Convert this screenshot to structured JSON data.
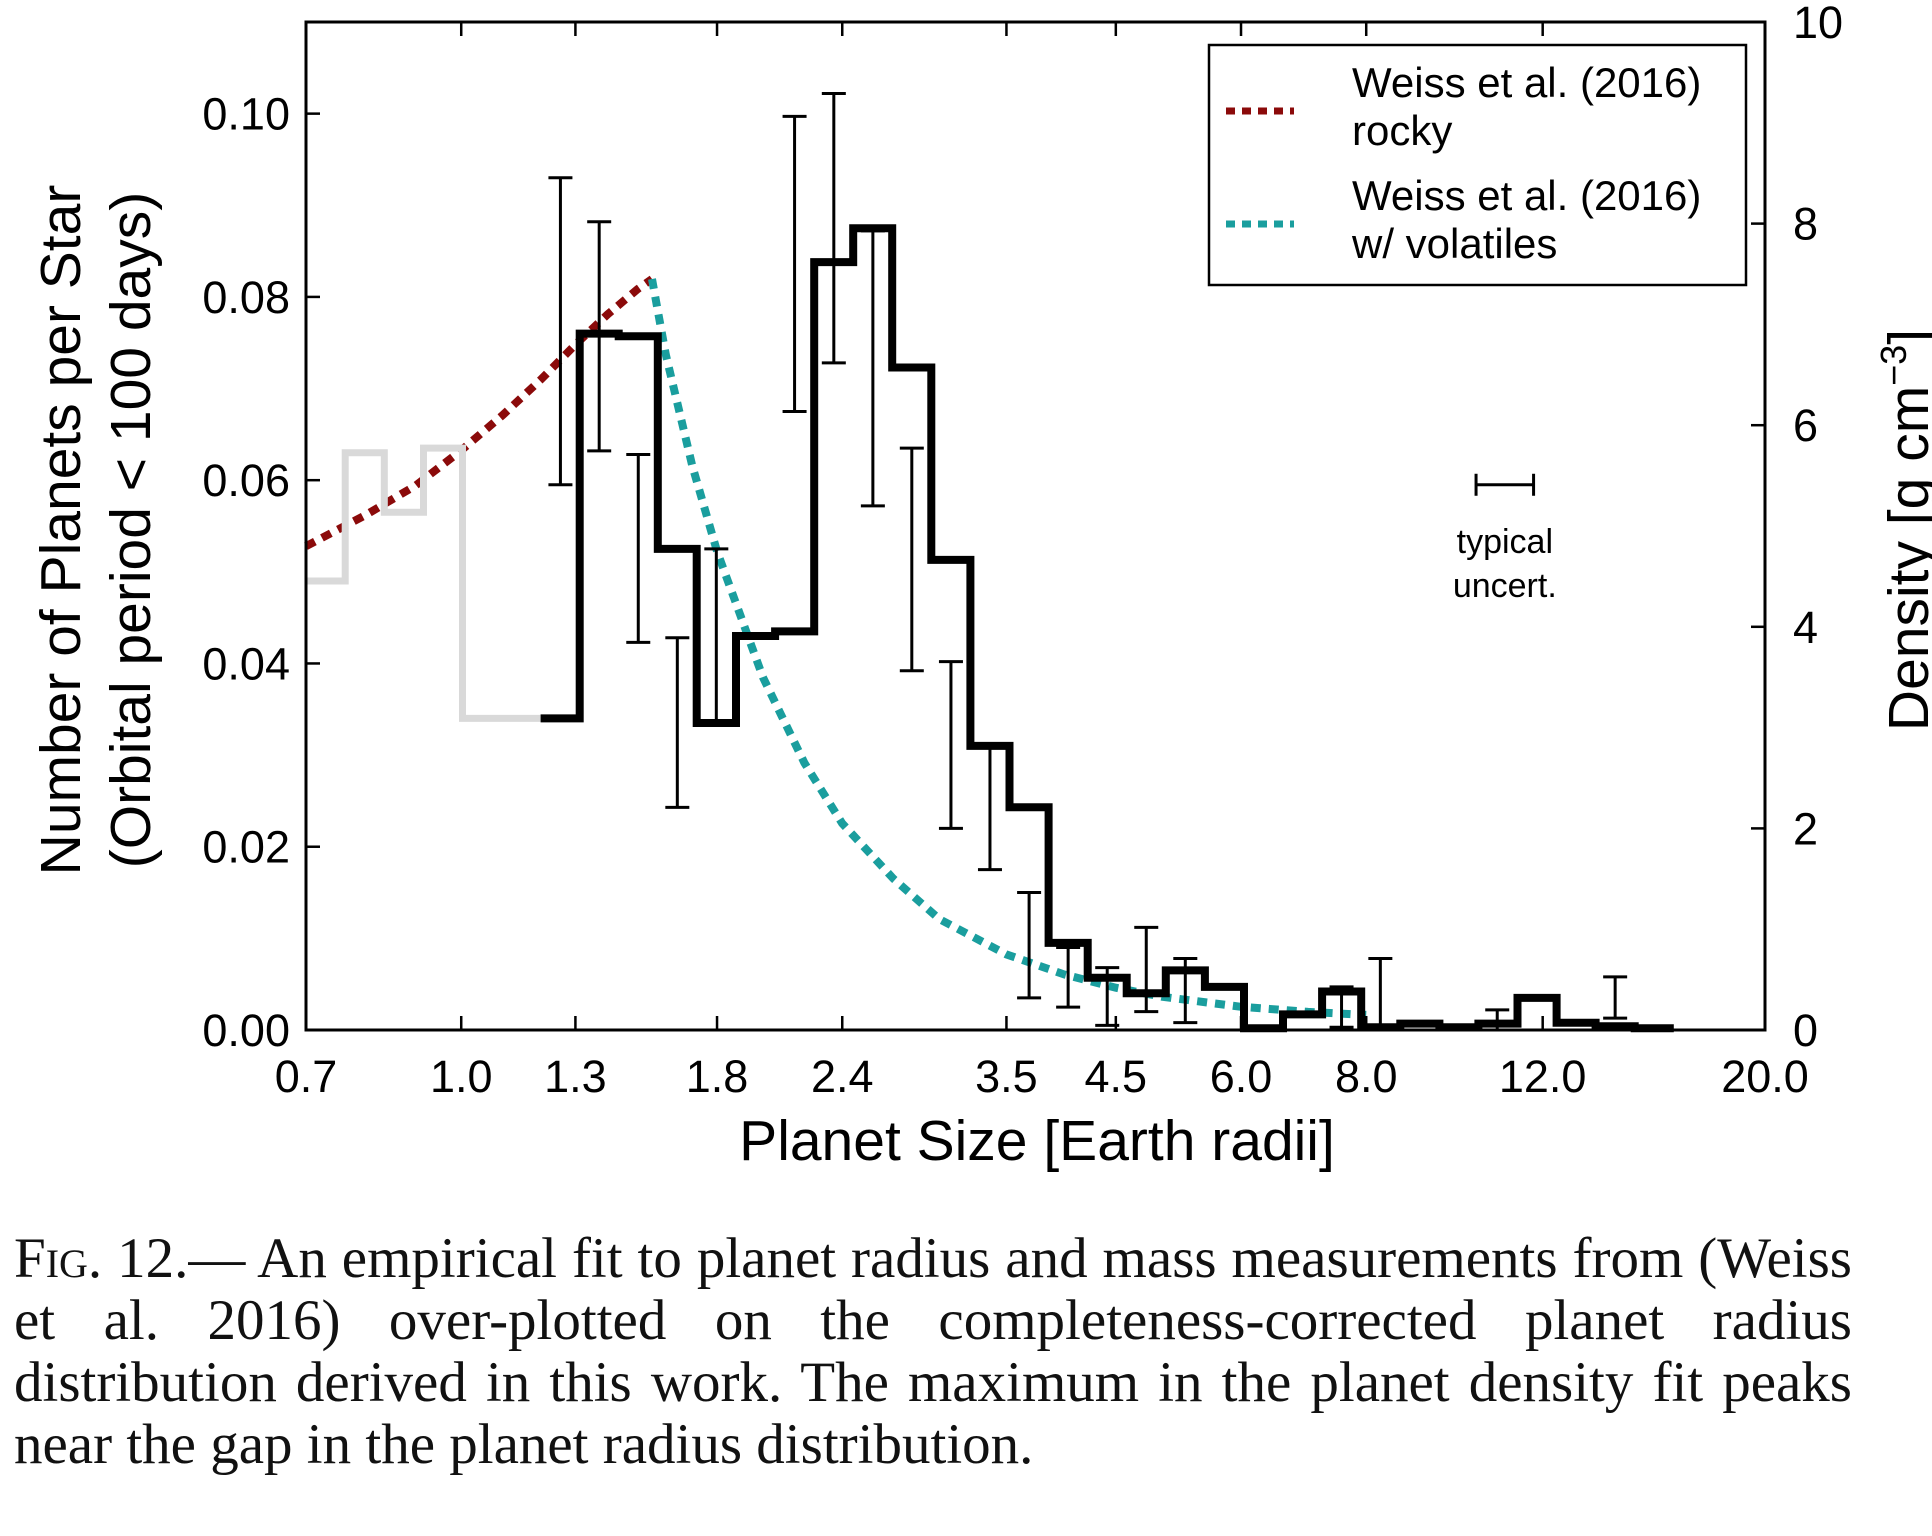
{
  "chart_data": {
    "type": "bar",
    "x_axis": {
      "label": "Planet Size [Earth radii]",
      "scale": "log",
      "range": [
        0.7,
        20.0
      ],
      "tick_values": [
        0.7,
        1.0,
        1.3,
        1.8,
        2.4,
        3.5,
        4.5,
        6.0,
        8.0,
        12.0,
        20.0
      ],
      "tick_labels": [
        "0.7",
        "1.0",
        "1.3",
        "1.8",
        "2.4",
        "3.5",
        "4.5",
        "6.0",
        "8.0",
        "12.0",
        "20.0"
      ]
    },
    "y_axis_left": {
      "label_line1": "Number of Planets per Star",
      "label_line2": "(Orbital period < 100 days)",
      "range": [
        0.0,
        0.11
      ],
      "tick_values": [
        0.0,
        0.02,
        0.04,
        0.06,
        0.08,
        0.1
      ],
      "tick_labels": [
        "0.00",
        "0.02",
        "0.04",
        "0.06",
        "0.08",
        "0.10"
      ]
    },
    "y_axis_right": {
      "label_main": "Density [g cm",
      "label_exp": "−3",
      "label_close": "]",
      "range": [
        0,
        10
      ],
      "tick_values": [
        0,
        2,
        4,
        6,
        8,
        10
      ],
      "tick_labels": [
        "0",
        "2",
        "4",
        "6",
        "8",
        "10"
      ]
    },
    "bin_edges": [
      0.7,
      0.766,
      0.838,
      0.917,
      1.003,
      1.097,
      1.2,
      1.313,
      1.436,
      1.571,
      1.718,
      1.88,
      2.057,
      2.25,
      2.461,
      2.692,
      2.945,
      3.222,
      3.525,
      3.856,
      4.218,
      4.614,
      5.048,
      5.522,
      6.041,
      6.608,
      7.229,
      7.908,
      8.651,
      9.464,
      10.353,
      11.325,
      12.389,
      13.553,
      14.826,
      16.218,
      17.742,
      19.409
    ],
    "series": [
      {
        "values": [
          0.049,
          0.063,
          0.0565,
          0.0635,
          0.034,
          0.034
        ],
        "color": "#d9d9d9"
      },
      {
        "values": [
          0.034,
          0.076,
          0.0757,
          0.0525,
          0.0335,
          0.043,
          0.0435,
          0.0838,
          0.0875,
          0.0723,
          0.0513,
          0.031,
          0.0243,
          0.0095,
          0.0057,
          0.004,
          0.0065,
          0.0047,
          0.0002,
          0.0017,
          0.0042,
          0.0003,
          0.0007,
          0.0003,
          0.0007,
          0.0035,
          0.0008,
          0.0004,
          0.0002
        ],
        "color": "#000000"
      }
    ],
    "error_bars": [
      {
        "x": 1.256,
        "low": 0.0595,
        "high": 0.093
      },
      {
        "x": 1.373,
        "low": 0.0632,
        "high": 0.0882
      },
      {
        "x": 1.502,
        "low": 0.0423,
        "high": 0.0628
      },
      {
        "x": 1.643,
        "low": 0.0243,
        "high": 0.0428
      },
      {
        "x": 1.797,
        "low": 0.0333,
        "high": 0.0525
      },
      {
        "x": 2.151,
        "low": 0.0675,
        "high": 0.0997
      },
      {
        "x": 2.354,
        "low": 0.0728,
        "high": 0.1022
      },
      {
        "x": 2.575,
        "low": 0.0572,
        "high": 0.0872
      },
      {
        "x": 2.816,
        "low": 0.0392,
        "high": 0.0635
      },
      {
        "x": 3.081,
        "low": 0.022,
        "high": 0.0402
      },
      {
        "x": 3.37,
        "low": 0.0175,
        "high": 0.031
      },
      {
        "x": 3.687,
        "low": 0.0035,
        "high": 0.015
      },
      {
        "x": 4.033,
        "low": 0.0025,
        "high": 0.009
      },
      {
        "x": 4.412,
        "low": 0.0005,
        "high": 0.0068
      },
      {
        "x": 4.826,
        "low": 0.002,
        "high": 0.0112
      },
      {
        "x": 5.279,
        "low": 0.0008,
        "high": 0.0078
      },
      {
        "x": 7.559,
        "low": 0.0003,
        "high": 0.0047
      },
      {
        "x": 8.264,
        "low": 0.0005,
        "high": 0.0078
      },
      {
        "x": 10.81,
        "low": 0.0,
        "high": 0.0022
      },
      {
        "x": 14.174,
        "low": 0.0013,
        "high": 0.0058
      }
    ],
    "curves": [
      {
        "name": "Weiss et al. (2016)\nrocky",
        "axis": "right",
        "color": "#8b0a0a",
        "points": [
          [
            0.7,
            4.8
          ],
          [
            0.8,
            5.1
          ],
          [
            0.9,
            5.4
          ],
          [
            1.0,
            5.75
          ],
          [
            1.1,
            6.1
          ],
          [
            1.2,
            6.45
          ],
          [
            1.3,
            6.8
          ],
          [
            1.4,
            7.1
          ],
          [
            1.5,
            7.35
          ],
          [
            1.55,
            7.45
          ]
        ]
      },
      {
        "name": "Weiss et al. (2016)\nw/ volatiles",
        "axis": "right",
        "color": "#1a9e9e",
        "points": [
          [
            1.55,
            7.45
          ],
          [
            1.6,
            6.7
          ],
          [
            1.7,
            5.6
          ],
          [
            1.8,
            4.75
          ],
          [
            2.0,
            3.5
          ],
          [
            2.2,
            2.65
          ],
          [
            2.4,
            2.05
          ],
          [
            2.7,
            1.5
          ],
          [
            3.0,
            1.1
          ],
          [
            3.5,
            0.75
          ],
          [
            4.0,
            0.55
          ],
          [
            4.5,
            0.42
          ],
          [
            5.0,
            0.33
          ],
          [
            6.0,
            0.23
          ],
          [
            7.0,
            0.18
          ],
          [
            8.0,
            0.15
          ]
        ]
      }
    ],
    "legend": {
      "placement": "top-right",
      "entries": [
        {
          "line1": "Weiss et al. (2016)",
          "line2": "rocky",
          "color": "#8b0a0a"
        },
        {
          "line1": "Weiss et al. (2016)",
          "line2": "w/ volatiles",
          "color": "#1a9e9e"
        }
      ]
    },
    "annotation": {
      "line1": "typical",
      "line2": "uncert.",
      "x": 11.0,
      "y": 0.0595,
      "halfwidth_log10": 0.0287
    },
    "grid": false
  },
  "caption": {
    "label": "Fig. 12.",
    "text": "— An empirical fit to planet radius and mass measurements from (Weiss et al. 2016) over-plotted on the completeness-corrected planet radius distribution derived in this work. The maximum in the planet density fit peaks near the gap in the planet radius distribution."
  }
}
